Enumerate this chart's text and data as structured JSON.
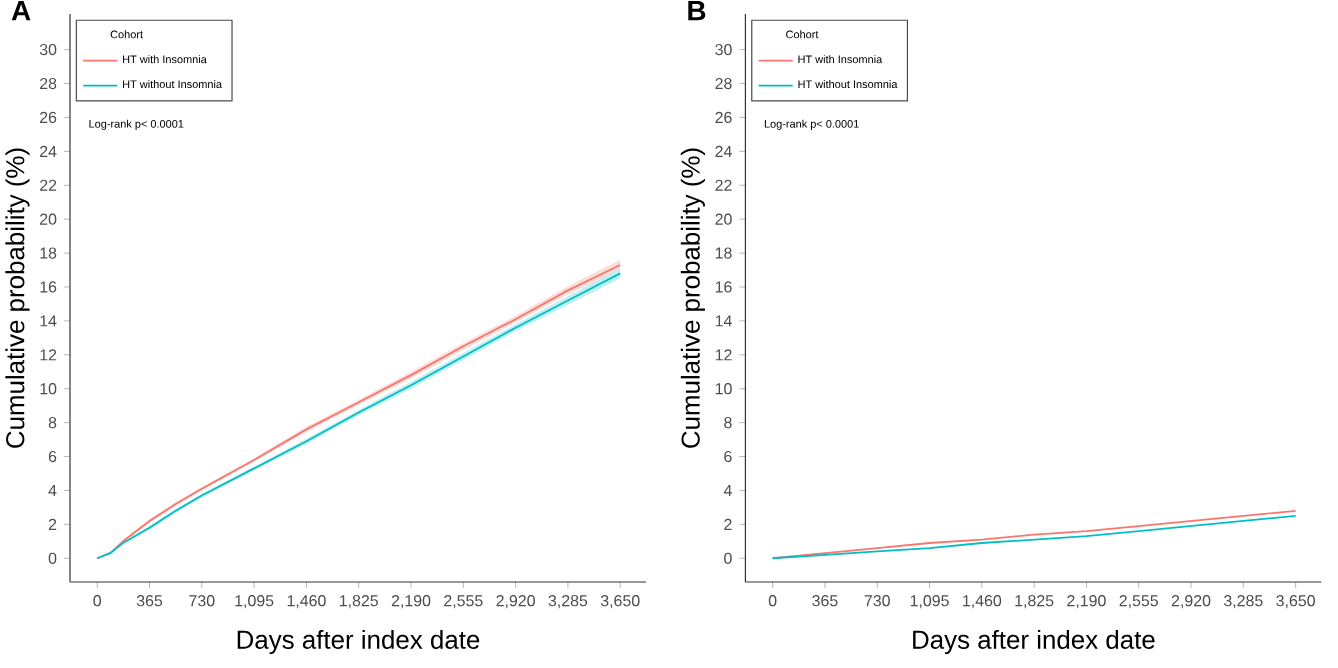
{
  "chart_data": [
    {
      "type": "line",
      "title": "A",
      "xlabel": "Days after index date",
      "ylabel": "Cumulative probability (%)",
      "legend_title": "Cohort",
      "legend": "top left",
      "grid": false,
      "annotations": [
        "Log-rank p< 0.0001"
      ],
      "xlim": [
        -190,
        3830
      ],
      "ylim": [
        -1.4,
        32.1
      ],
      "xticks": [
        0,
        365,
        730,
        {
          "value": 1095,
          "label": "1,095"
        },
        {
          "value": 1460,
          "label": "1,460"
        },
        {
          "value": 1825,
          "label": "1,825"
        },
        {
          "value": 2190,
          "label": "2,190"
        },
        {
          "value": 2555,
          "label": "2,555"
        },
        {
          "value": 2920,
          "label": "2,920"
        },
        {
          "value": 3285,
          "label": "3,285"
        },
        {
          "value": 3650,
          "label": "3,650"
        }
      ],
      "yticks": [
        0,
        2,
        4,
        6,
        8,
        10,
        12,
        14,
        16,
        18,
        20,
        22,
        24,
        26,
        28,
        30
      ],
      "x": [
        0,
        90,
        180,
        365,
        548,
        730,
        1095,
        1460,
        1825,
        2190,
        2555,
        2920,
        3285,
        3650
      ],
      "series": [
        {
          "name": "HT with Insomnia",
          "color": "#f8766d",
          "values": [
            0,
            0.3,
            1.0,
            2.2,
            3.2,
            4.1,
            5.8,
            7.6,
            9.2,
            10.8,
            12.5,
            14.1,
            15.8,
            17.3
          ],
          "lower": [
            0,
            0.25,
            0.95,
            2.1,
            3.1,
            4.0,
            5.7,
            7.45,
            9.05,
            10.6,
            12.3,
            13.9,
            15.55,
            17.0
          ],
          "upper": [
            0,
            0.35,
            1.05,
            2.3,
            3.3,
            4.2,
            5.9,
            7.75,
            9.35,
            11.0,
            12.7,
            14.3,
            16.05,
            17.6
          ]
        },
        {
          "name": "HT without Insomnia",
          "color": "#00bfc4",
          "values": [
            0,
            0.3,
            0.9,
            1.8,
            2.8,
            3.7,
            5.3,
            6.9,
            8.6,
            10.2,
            11.9,
            13.6,
            15.2,
            16.8
          ],
          "lower": [
            0,
            0.25,
            0.85,
            1.7,
            2.7,
            3.6,
            5.2,
            6.75,
            8.45,
            10.0,
            11.7,
            13.4,
            14.95,
            16.5
          ],
          "upper": [
            0,
            0.35,
            0.95,
            1.9,
            2.9,
            3.8,
            5.4,
            7.05,
            8.75,
            10.4,
            12.1,
            13.8,
            15.45,
            17.1
          ]
        }
      ]
    },
    {
      "type": "line",
      "title": "B",
      "xlabel": "Days after index date",
      "ylabel": "Cumulative probability (%)",
      "legend_title": "Cohort",
      "legend": "top left",
      "grid": false,
      "annotations": [
        "Log-rank p< 0.0001"
      ],
      "xlim": [
        -190,
        3830
      ],
      "ylim": [
        -1.4,
        32.1
      ],
      "xticks": [
        0,
        365,
        730,
        {
          "value": 1095,
          "label": "1,095"
        },
        {
          "value": 1460,
          "label": "1,460"
        },
        {
          "value": 1825,
          "label": "1,825"
        },
        {
          "value": 2190,
          "label": "2,190"
        },
        {
          "value": 2555,
          "label": "2,555"
        },
        {
          "value": 2920,
          "label": "2,920"
        },
        {
          "value": 3285,
          "label": "3,285"
        },
        {
          "value": 3650,
          "label": "3,650"
        }
      ],
      "yticks": [
        0,
        2,
        4,
        6,
        8,
        10,
        12,
        14,
        16,
        18,
        20,
        22,
        24,
        26,
        28,
        30
      ],
      "x": [
        0,
        365,
        730,
        1095,
        1460,
        1825,
        2190,
        2555,
        2920,
        3285,
        3650
      ],
      "series": [
        {
          "name": "HT with Insomnia",
          "color": "#f8766d",
          "values": [
            0,
            0.3,
            0.6,
            0.9,
            1.1,
            1.4,
            1.6,
            1.9,
            2.2,
            2.5,
            2.8
          ]
        },
        {
          "name": "HT without Insomnia",
          "color": "#00bfc4",
          "values": [
            0,
            0.2,
            0.4,
            0.6,
            0.9,
            1.1,
            1.3,
            1.6,
            1.9,
            2.2,
            2.5
          ]
        }
      ]
    }
  ]
}
